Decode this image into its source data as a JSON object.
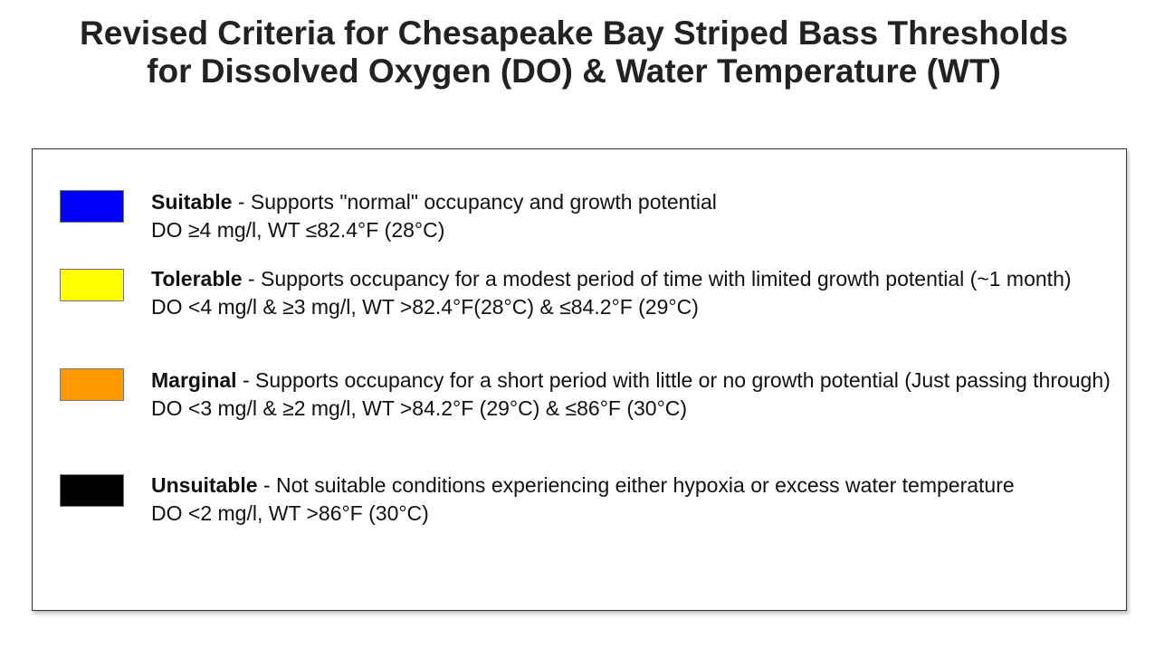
{
  "title": {
    "line1": "Revised Criteria for Chesapeake Bay Striped Bass Thresholds",
    "line2": "for Dissolved Oxygen (DO) & Water Temperature (WT)"
  },
  "legend": [
    {
      "color": "#0000ff",
      "name": "Suitable",
      "description": " - Supports \"normal\" occupancy and growth potential",
      "criteria": "DO ≥4 mg/l, WT ≤82.4°F (28°C)"
    },
    {
      "color": "#ffff00",
      "name": "Tolerable",
      "description": " - Supports occupancy for a modest period of time with limited growth potential (~1 month)",
      "criteria": "DO <4 mg/l & ≥3 mg/l, WT >82.4°F(28°C) & ≤84.2°F (29°C)"
    },
    {
      "color": "#ff9900",
      "name": "Marginal",
      "description": " - Supports occupancy for a short period with little or no growth potential (Just passing through)",
      "criteria": "DO <3 mg/l & ≥2 mg/l, WT >84.2°F (29°C) & ≤86°F (30°C)"
    },
    {
      "color": "#000000",
      "name": "Unsuitable",
      "description": " - Not suitable conditions experiencing either hypoxia or excess water temperature",
      "criteria": "DO <2 mg/l, WT >86°F (30°C)"
    }
  ]
}
